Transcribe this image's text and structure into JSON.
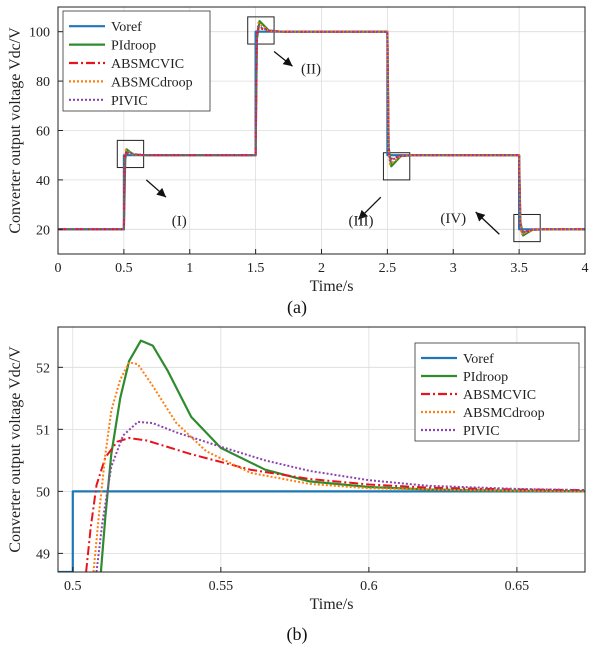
{
  "chart_data": [
    {
      "panel": "(a)",
      "type": "line",
      "xlabel": "Time/s",
      "ylabel": "Converter output voltage Vdc/V",
      "xlim": [
        0,
        4
      ],
      "ylim": [
        10,
        110
      ],
      "xticks": [
        0,
        0.5,
        1,
        1.5,
        2,
        2.5,
        3,
        3.5,
        4
      ],
      "yticks": [
        20,
        40,
        60,
        80,
        100
      ],
      "grid": true,
      "legend_position": "top-left",
      "series": [
        {
          "name": "Voref",
          "color": "#1f77b4",
          "style": "solid",
          "points": [
            [
              0,
              20
            ],
            [
              0.5,
              20
            ],
            [
              0.5,
              50
            ],
            [
              1.5,
              50
            ],
            [
              1.5,
              100
            ],
            [
              2.5,
              100
            ],
            [
              2.5,
              50
            ],
            [
              3.5,
              50
            ],
            [
              3.5,
              20
            ],
            [
              4,
              20
            ]
          ]
        },
        {
          "name": "PIdroop",
          "color": "#2e8b2e",
          "style": "solid",
          "points": [
            [
              0,
              20
            ],
            [
              0.5,
              20
            ],
            [
              0.51,
              48
            ],
            [
              0.52,
              52.4
            ],
            [
              0.57,
              50.3
            ],
            [
              0.65,
              50
            ],
            [
              1.5,
              50
            ],
            [
              1.51,
              97
            ],
            [
              1.53,
              104.3
            ],
            [
              1.6,
              100.5
            ],
            [
              1.7,
              100
            ],
            [
              2.5,
              100
            ],
            [
              2.51,
              53
            ],
            [
              2.53,
              45.5
            ],
            [
              2.6,
              49.6
            ],
            [
              2.7,
              50
            ],
            [
              3.5,
              50
            ],
            [
              3.51,
              23
            ],
            [
              3.53,
              17.5
            ],
            [
              3.6,
              19.8
            ],
            [
              3.7,
              20
            ],
            [
              4,
              20
            ]
          ]
        },
        {
          "name": "ABSMCVIC",
          "color": "#e8141b",
          "style": "dashdot",
          "points": [
            [
              0,
              20
            ],
            [
              0.5,
              20
            ],
            [
              0.505,
              49
            ],
            [
              0.515,
              50.9
            ],
            [
              0.6,
              50.2
            ],
            [
              0.68,
              50
            ],
            [
              1.5,
              50
            ],
            [
              1.51,
              99
            ],
            [
              1.52,
              101.6
            ],
            [
              1.6,
              100.3
            ],
            [
              1.7,
              100
            ],
            [
              2.5,
              100
            ],
            [
              2.51,
              51
            ],
            [
              2.52,
              48.4
            ],
            [
              2.6,
              49.7
            ],
            [
              2.7,
              50
            ],
            [
              3.5,
              50
            ],
            [
              3.51,
              21
            ],
            [
              3.52,
              18.5
            ],
            [
              3.6,
              19.8
            ],
            [
              3.7,
              20
            ],
            [
              4,
              20
            ]
          ]
        },
        {
          "name": "ABSMCdroop",
          "color": "#ff7f0e",
          "style": "dotted",
          "points": [
            [
              0,
              20
            ],
            [
              0.5,
              20
            ],
            [
              0.508,
              49
            ],
            [
              0.515,
              52.1
            ],
            [
              0.57,
              50.2
            ],
            [
              0.65,
              50
            ],
            [
              1.5,
              50
            ],
            [
              1.51,
              98
            ],
            [
              1.52,
              103.6
            ],
            [
              1.6,
              100.3
            ],
            [
              1.7,
              100
            ],
            [
              2.5,
              100
            ],
            [
              2.51,
              52
            ],
            [
              2.52,
              46.3
            ],
            [
              2.6,
              49.7
            ],
            [
              2.7,
              50
            ],
            [
              3.5,
              50
            ],
            [
              3.51,
              22
            ],
            [
              3.52,
              18.1
            ],
            [
              3.6,
              19.8
            ],
            [
              3.7,
              20
            ],
            [
              4,
              20
            ]
          ]
        },
        {
          "name": "PIVIC",
          "color": "#8e44ad",
          "style": "dotted",
          "points": [
            [
              0,
              20
            ],
            [
              0.5,
              20
            ],
            [
              0.51,
              49
            ],
            [
              0.52,
              51.2
            ],
            [
              0.6,
              50.3
            ],
            [
              0.68,
              50
            ],
            [
              1.5,
              50
            ],
            [
              1.51,
              98.5
            ],
            [
              1.52,
              102.2
            ],
            [
              1.6,
              100.4
            ],
            [
              1.7,
              100
            ],
            [
              2.5,
              100
            ],
            [
              2.51,
              51.5
            ],
            [
              2.52,
              47.8
            ],
            [
              2.6,
              49.7
            ],
            [
              2.7,
              50
            ],
            [
              3.5,
              50
            ],
            [
              3.51,
              21.5
            ],
            [
              3.52,
              18.9
            ],
            [
              3.6,
              19.8
            ],
            [
              3.7,
              20
            ],
            [
              4,
              20
            ]
          ]
        }
      ],
      "annotations": [
        {
          "text": "(I)",
          "x": 0.92,
          "y": 21.5
        },
        {
          "text": "(II)",
          "x": 1.92,
          "y": 83
        },
        {
          "text": "(III)",
          "x": 2.3,
          "y": 21.5
        },
        {
          "text": "(IV)",
          "x": 3.0,
          "y": 22.5
        }
      ],
      "zoom_boxes": [
        {
          "x0": 0.45,
          "x1": 0.65,
          "y0": 45,
          "y1": 56
        },
        {
          "x0": 1.44,
          "x1": 1.64,
          "y0": 95,
          "y1": 106
        },
        {
          "x0": 2.47,
          "x1": 2.67,
          "y0": 40,
          "y1": 51
        },
        {
          "x0": 3.46,
          "x1": 3.66,
          "y0": 15,
          "y1": 26
        }
      ],
      "arrows": [
        {
          "from": [
            0.67,
            40
          ],
          "to": [
            0.82,
            33
          ]
        },
        {
          "from": [
            1.64,
            92
          ],
          "to": [
            1.78,
            86
          ]
        },
        {
          "from": [
            2.45,
            33
          ],
          "to": [
            2.28,
            24
          ]
        },
        {
          "from": [
            3.35,
            18
          ],
          "to": [
            3.17,
            27
          ]
        }
      ]
    },
    {
      "panel": "(b)",
      "type": "line",
      "xlabel": "Time/s",
      "ylabel": "Converter output voltage Vdc/V",
      "xlim": [
        0.495,
        0.673
      ],
      "ylim": [
        48.7,
        52.65
      ],
      "xticks": [
        0.5,
        0.55,
        0.6,
        0.65
      ],
      "yticks": [
        49,
        50,
        51,
        52
      ],
      "grid": true,
      "legend_position": "top-right",
      "series": [
        {
          "name": "Voref",
          "color": "#1f77b4",
          "style": "solid",
          "points": [
            [
              0.495,
              48.7
            ],
            [
              0.5,
              48.7
            ],
            [
              0.5,
              50
            ],
            [
              0.673,
              50
            ]
          ]
        },
        {
          "name": "PIdroop",
          "color": "#2e8b2e",
          "style": "solid",
          "points": [
            [
              0.5095,
              48.7
            ],
            [
              0.511,
              49.6
            ],
            [
              0.513,
              50.6
            ],
            [
              0.516,
              51.5
            ],
            [
              0.519,
              52.1
            ],
            [
              0.523,
              52.43
            ],
            [
              0.527,
              52.35
            ],
            [
              0.532,
              51.95
            ],
            [
              0.54,
              51.2
            ],
            [
              0.55,
              50.7
            ],
            [
              0.565,
              50.35
            ],
            [
              0.58,
              50.16
            ],
            [
              0.6,
              50.07
            ],
            [
              0.62,
              50.03
            ],
            [
              0.65,
              50.01
            ],
            [
              0.673,
              50.0
            ]
          ]
        },
        {
          "name": "ABSMCVIC",
          "color": "#e8141b",
          "style": "dashdot",
          "points": [
            [
              0.5045,
              48.7
            ],
            [
              0.506,
              49.4
            ],
            [
              0.508,
              50.1
            ],
            [
              0.511,
              50.55
            ],
            [
              0.515,
              50.8
            ],
            [
              0.519,
              50.86
            ],
            [
              0.525,
              50.82
            ],
            [
              0.54,
              50.6
            ],
            [
              0.56,
              50.35
            ],
            [
              0.58,
              50.2
            ],
            [
              0.6,
              50.11
            ],
            [
              0.62,
              50.06
            ],
            [
              0.65,
              50.03
            ],
            [
              0.673,
              50.02
            ]
          ]
        },
        {
          "name": "ABSMCdroop",
          "color": "#ff7f0e",
          "style": "dotted",
          "points": [
            [
              0.507,
              48.7
            ],
            [
              0.509,
              49.7
            ],
            [
              0.511,
              50.6
            ],
            [
              0.513,
              51.3
            ],
            [
              0.516,
              51.8
            ],
            [
              0.519,
              52.08
            ],
            [
              0.522,
              52.05
            ],
            [
              0.527,
              51.7
            ],
            [
              0.535,
              51.1
            ],
            [
              0.545,
              50.65
            ],
            [
              0.56,
              50.3
            ],
            [
              0.58,
              50.12
            ],
            [
              0.6,
              50.05
            ],
            [
              0.63,
              50.02
            ],
            [
              0.673,
              50.0
            ]
          ]
        },
        {
          "name": "PIVIC",
          "color": "#8e44ad",
          "style": "dotted",
          "points": [
            [
              0.508,
              48.7
            ],
            [
              0.51,
              49.5
            ],
            [
              0.513,
              50.4
            ],
            [
              0.517,
              50.9
            ],
            [
              0.522,
              51.12
            ],
            [
              0.527,
              51.1
            ],
            [
              0.535,
              50.95
            ],
            [
              0.55,
              50.72
            ],
            [
              0.565,
              50.5
            ],
            [
              0.58,
              50.33
            ],
            [
              0.6,
              50.18
            ],
            [
              0.62,
              50.09
            ],
            [
              0.65,
              50.04
            ],
            [
              0.673,
              50.02
            ]
          ]
        }
      ]
    }
  ],
  "captions": [
    "(a)",
    "(b)"
  ]
}
